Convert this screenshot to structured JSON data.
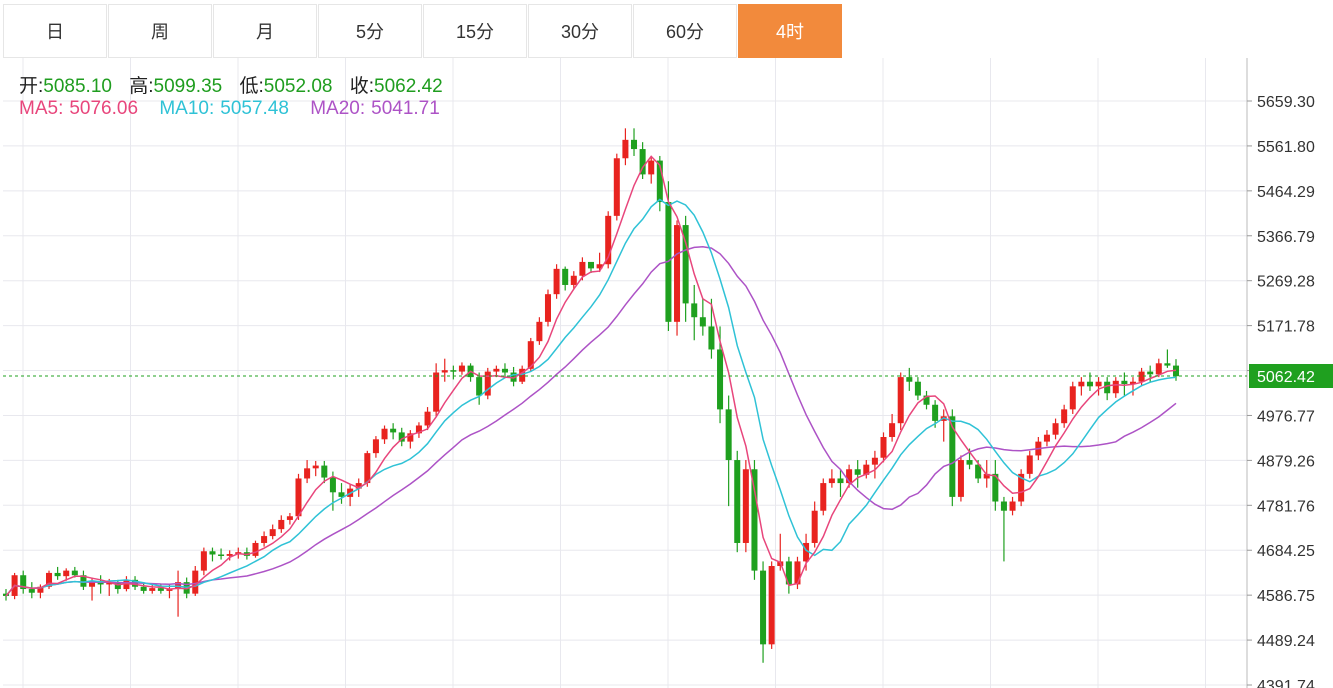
{
  "tabs": [
    {
      "label": "日",
      "active": false
    },
    {
      "label": "周",
      "active": false
    },
    {
      "label": "月",
      "active": false
    },
    {
      "label": "5分",
      "active": false
    },
    {
      "label": "15分",
      "active": false
    },
    {
      "label": "30分",
      "active": false
    },
    {
      "label": "60分",
      "active": false
    },
    {
      "label": "4时",
      "active": true
    }
  ],
  "ohlc": {
    "open_label": "开:",
    "open": "5085.10",
    "high_label": "高:",
    "high": "5099.35",
    "low_label": "低:",
    "low": "5052.08",
    "close_label": "收:",
    "close": "5062.42"
  },
  "ma_legend": {
    "ma5_label": "MA5:",
    "ma5": "5076.06",
    "ma10_label": "MA10:",
    "ma10": "5057.48",
    "ma20_label": "MA20:",
    "ma20": "5041.71"
  },
  "colors": {
    "up": "#e8231f",
    "down": "#1fa01f",
    "ma5": "#e8467c",
    "ma10": "#2fc2d6",
    "ma20": "#ad53c6",
    "grid": "#e8e8ee",
    "axis_text": "#333333",
    "last_price_bg": "#1fa01f",
    "active_tab": "#f28a3c"
  },
  "chart_data": {
    "type": "candlestick",
    "y_axis": {
      "ticks": [
        "5659.30",
        "5561.80",
        "5464.29",
        "5366.79",
        "5269.28",
        "5171.78",
        "5074.28",
        "4976.77",
        "4879.26",
        "4781.76",
        "4684.25",
        "4586.75",
        "4489.24",
        "4391.74"
      ],
      "min": 4391.74,
      "max": 5659.3,
      "position": "right"
    },
    "last_price": "5062.42",
    "grid": true,
    "candles": [
      [
        4590,
        4600,
        4575,
        4585
      ],
      [
        4585,
        4635,
        4578,
        4630
      ],
      [
        4630,
        4640,
        4590,
        4600
      ],
      [
        4600,
        4615,
        4580,
        4592
      ],
      [
        4592,
        4610,
        4580,
        4605
      ],
      [
        4605,
        4640,
        4600,
        4635
      ],
      [
        4635,
        4648,
        4620,
        4628
      ],
      [
        4628,
        4645,
        4618,
        4640
      ],
      [
        4640,
        4648,
        4625,
        4630
      ],
      [
        4630,
        4640,
        4598,
        4605
      ],
      [
        4605,
        4625,
        4575,
        4615
      ],
      [
        4615,
        4630,
        4590,
        4610
      ],
      [
        4610,
        4622,
        4585,
        4615
      ],
      [
        4615,
        4620,
        4590,
        4600
      ],
      [
        4600,
        4628,
        4595,
        4620
      ],
      [
        4620,
        4628,
        4598,
        4605
      ],
      [
        4605,
        4615,
        4590,
        4596
      ],
      [
        4596,
        4610,
        4590,
        4602
      ],
      [
        4602,
        4612,
        4590,
        4596
      ],
      [
        4596,
        4610,
        4580,
        4600
      ],
      [
        4600,
        4640,
        4540,
        4615
      ],
      [
        4615,
        4625,
        4580,
        4590
      ],
      [
        4590,
        4650,
        4585,
        4640
      ],
      [
        4640,
        4690,
        4630,
        4682
      ],
      [
        4682,
        4690,
        4660,
        4675
      ],
      [
        4675,
        4688,
        4664,
        4672
      ],
      [
        4672,
        4684,
        4662,
        4676
      ],
      [
        4676,
        4690,
        4666,
        4680
      ],
      [
        4680,
        4690,
        4664,
        4672
      ],
      [
        4672,
        4705,
        4668,
        4700
      ],
      [
        4700,
        4725,
        4692,
        4715
      ],
      [
        4715,
        4740,
        4708,
        4730
      ],
      [
        4730,
        4760,
        4722,
        4750
      ],
      [
        4750,
        4765,
        4740,
        4758
      ],
      [
        4758,
        4850,
        4750,
        4840
      ],
      [
        4840,
        4880,
        4830,
        4862
      ],
      [
        4862,
        4878,
        4845,
        4868
      ],
      [
        4868,
        4878,
        4830,
        4842
      ],
      [
        4842,
        4855,
        4770,
        4810
      ],
      [
        4810,
        4830,
        4785,
        4800
      ],
      [
        4800,
        4828,
        4780,
        4818
      ],
      [
        4818,
        4840,
        4800,
        4830
      ],
      [
        4830,
        4900,
        4822,
        4895
      ],
      [
        4895,
        4932,
        4885,
        4925
      ],
      [
        4925,
        4955,
        4915,
        4948
      ],
      [
        4948,
        4960,
        4925,
        4940
      ],
      [
        4940,
        4950,
        4910,
        4920
      ],
      [
        4920,
        4945,
        4905,
        4938
      ],
      [
        4938,
        4962,
        4928,
        4955
      ],
      [
        4955,
        4995,
        4945,
        4985
      ],
      [
        4985,
        5090,
        4975,
        5070
      ],
      [
        5070,
        5100,
        5050,
        5075
      ],
      [
        5075,
        5085,
        5055,
        5072
      ],
      [
        5072,
        5092,
        5065,
        5085
      ],
      [
        5085,
        5090,
        5050,
        5060
      ],
      [
        5060,
        5070,
        5000,
        5020
      ],
      [
        5020,
        5080,
        5012,
        5072
      ],
      [
        5072,
        5085,
        5060,
        5078
      ],
      [
        5078,
        5090,
        5060,
        5070
      ],
      [
        5070,
        5082,
        5040,
        5050
      ],
      [
        5050,
        5085,
        5045,
        5078
      ],
      [
        5078,
        5145,
        5072,
        5138
      ],
      [
        5138,
        5190,
        5130,
        5180
      ],
      [
        5180,
        5250,
        5170,
        5240
      ],
      [
        5240,
        5305,
        5230,
        5295
      ],
      [
        5295,
        5300,
        5248,
        5260
      ],
      [
        5260,
        5290,
        5250,
        5280
      ],
      [
        5280,
        5320,
        5270,
        5310
      ],
      [
        5310,
        5300,
        5286,
        5296
      ],
      [
        5296,
        5330,
        5288,
        5305
      ],
      [
        5305,
        5420,
        5296,
        5410
      ],
      [
        5410,
        5545,
        5400,
        5535
      ],
      [
        5535,
        5600,
        5520,
        5575
      ],
      [
        5575,
        5600,
        5540,
        5555
      ],
      [
        5555,
        5570,
        5490,
        5500
      ],
      [
        5500,
        5540,
        5480,
        5530
      ],
      [
        5530,
        5540,
        5420,
        5440
      ],
      [
        5440,
        5485,
        5160,
        5180
      ],
      [
        5180,
        5400,
        5150,
        5390
      ],
      [
        5390,
        5410,
        5180,
        5220
      ],
      [
        5220,
        5260,
        5140,
        5190
      ],
      [
        5190,
        5230,
        5150,
        5170
      ],
      [
        5170,
        5230,
        5100,
        5120
      ],
      [
        5120,
        5170,
        4960,
        4990
      ],
      [
        4990,
        5020,
        4780,
        4880
      ],
      [
        4880,
        4900,
        4680,
        4700
      ],
      [
        4700,
        4880,
        4680,
        4860
      ],
      [
        4860,
        4880,
        4620,
        4640
      ],
      [
        4640,
        4660,
        4440,
        4480
      ],
      [
        4480,
        4660,
        4470,
        4650
      ],
      [
        4650,
        4720,
        4640,
        4660
      ],
      [
        4660,
        4670,
        4590,
        4610
      ],
      [
        4610,
        4670,
        4600,
        4660
      ],
      [
        4660,
        4720,
        4640,
        4700
      ],
      [
        4700,
        4790,
        4690,
        4770
      ],
      [
        4770,
        4840,
        4760,
        4830
      ],
      [
        4830,
        4860,
        4820,
        4840
      ],
      [
        4840,
        4860,
        4800,
        4830
      ],
      [
        4830,
        4870,
        4820,
        4860
      ],
      [
        4860,
        4880,
        4820,
        4848
      ],
      [
        4848,
        4880,
        4840,
        4870
      ],
      [
        4870,
        4900,
        4840,
        4885
      ],
      [
        4885,
        4940,
        4875,
        4930
      ],
      [
        4930,
        4980,
        4920,
        4960
      ],
      [
        4960,
        5070,
        4945,
        5060
      ],
      [
        5060,
        5080,
        5030,
        5050
      ],
      [
        5050,
        5060,
        5010,
        5020
      ],
      [
        5020,
        5030,
        4990,
        5000
      ],
      [
        5000,
        5010,
        4950,
        4965
      ],
      [
        4965,
        4990,
        4920,
        4975
      ],
      [
        4975,
        4990,
        4780,
        4800
      ],
      [
        4800,
        4890,
        4790,
        4880
      ],
      [
        4880,
        4905,
        4860,
        4870
      ],
      [
        4870,
        4880,
        4830,
        4840
      ],
      [
        4840,
        4880,
        4820,
        4850
      ],
      [
        4850,
        4880,
        4770,
        4790
      ],
      [
        4790,
        4800,
        4660,
        4770
      ],
      [
        4770,
        4800,
        4760,
        4790
      ],
      [
        4790,
        4860,
        4780,
        4850
      ],
      [
        4850,
        4900,
        4840,
        4890
      ],
      [
        4890,
        4930,
        4880,
        4920
      ],
      [
        4920,
        4945,
        4910,
        4935
      ],
      [
        4935,
        4970,
        4925,
        4960
      ],
      [
        4960,
        5000,
        4950,
        4990
      ],
      [
        4990,
        5050,
        4980,
        5040
      ],
      [
        5040,
        5060,
        5020,
        5050
      ],
      [
        5050,
        5070,
        5030,
        5040
      ],
      [
        5040,
        5060,
        5020,
        5050
      ],
      [
        5050,
        5060,
        5010,
        5025
      ],
      [
        5025,
        5060,
        5015,
        5052
      ],
      [
        5052,
        5070,
        5020,
        5045
      ],
      [
        5045,
        5060,
        5020,
        5050
      ],
      [
        5050,
        5080,
        5040,
        5072
      ],
      [
        5072,
        5085,
        5050,
        5066
      ],
      [
        5066,
        5100,
        5060,
        5090
      ],
      [
        5090,
        5120,
        5080,
        5085
      ],
      [
        5085,
        5099,
        5052,
        5062
      ]
    ]
  }
}
